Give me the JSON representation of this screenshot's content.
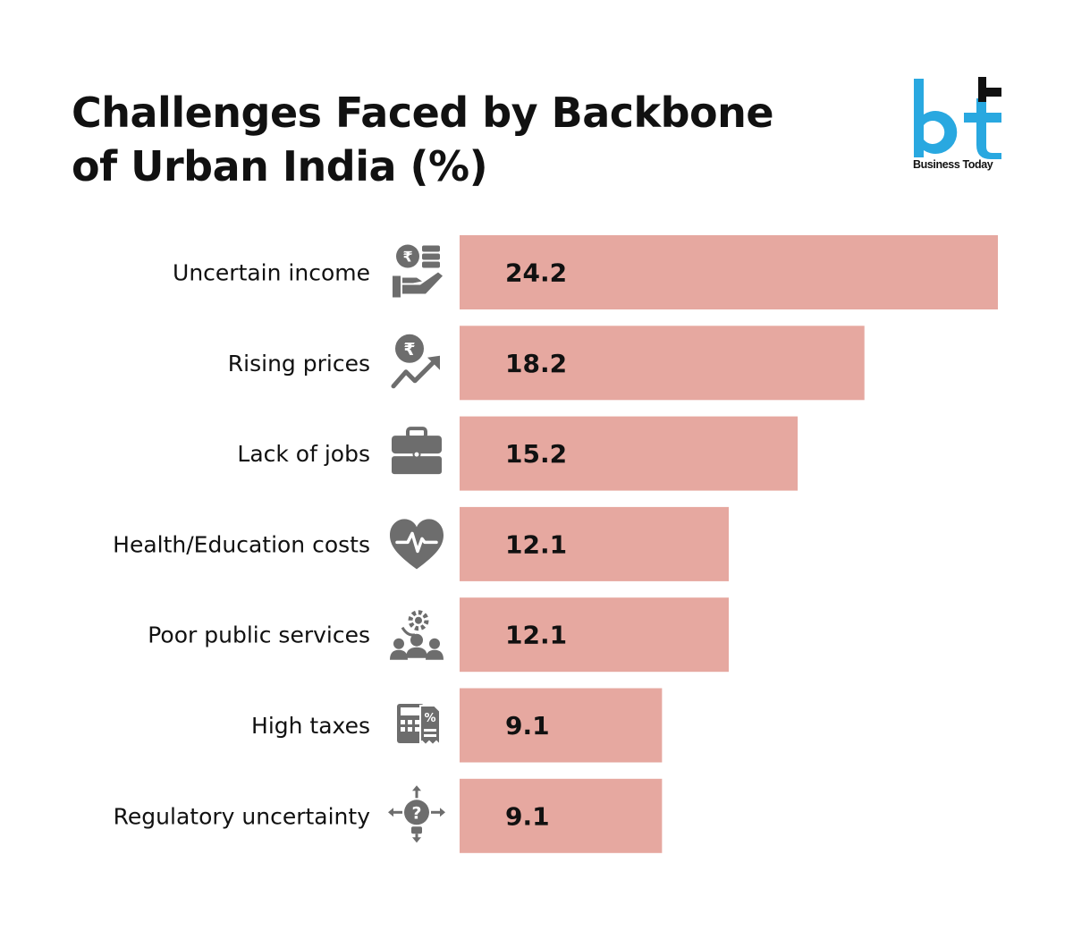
{
  "title_line1": "Challenges Faced by Backbone",
  "title_line2": "of Urban India (%)",
  "logo": {
    "mark": "bt",
    "text": "Business Today",
    "accent": "#29a8e0"
  },
  "colors": {
    "bar": "#e6a8a0",
    "icon": "#6d6d6d"
  },
  "chart_data": {
    "type": "bar",
    "orientation": "horizontal",
    "title": "Challenges Faced by Backbone of Urban India (%)",
    "categories": [
      "Uncertain income",
      "Rising prices",
      "Lack of jobs",
      "Health/Education costs",
      "Poor public services",
      "High taxes",
      "Regulatory uncertainty"
    ],
    "values": [
      24.2,
      18.2,
      15.2,
      12.1,
      12.1,
      9.1,
      9.1
    ],
    "value_labels": [
      "24.2",
      "18.2",
      "15.2",
      "12.1",
      "12.1",
      "9.1",
      "9.1"
    ],
    "icons": [
      "money-hand-icon",
      "price-rise-icon",
      "briefcase-icon",
      "heartbeat-icon",
      "public-service-icon",
      "tax-calculator-icon",
      "question-bulb-icon"
    ],
    "xlabel": "",
    "ylabel": "",
    "grid": false,
    "legend": "none"
  }
}
